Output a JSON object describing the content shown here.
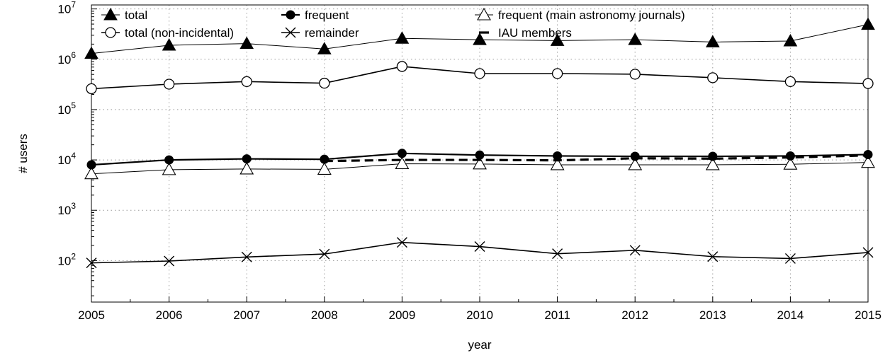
{
  "chart_data": {
    "type": "line",
    "xlabel": "year",
    "ylabel": "# users",
    "yscale": "log",
    "xlim": [
      2005,
      2015
    ],
    "ylim": [
      15,
      12000000
    ],
    "grid": true,
    "legend_position": "top",
    "x": [
      2005,
      2006,
      2007,
      2008,
      2009,
      2010,
      2011,
      2012,
      2013,
      2014,
      2015
    ],
    "xticks": [
      "2005",
      "2006",
      "2007",
      "2008",
      "2009",
      "2010",
      "2011",
      "2012",
      "2013",
      "2014",
      "2015"
    ],
    "yticks": [
      {
        "base": "10",
        "exp": "2",
        "value": 100
      },
      {
        "base": "10",
        "exp": "3",
        "value": 1000
      },
      {
        "base": "10",
        "exp": "4",
        "value": 10000
      },
      {
        "base": "10",
        "exp": "5",
        "value": 100000
      },
      {
        "base": "10",
        "exp": "6",
        "value": 1000000
      },
      {
        "base": "10",
        "exp": "7",
        "value": 10000000
      }
    ],
    "series": [
      {
        "key": "total",
        "name": "total",
        "marker": "triangle-filled",
        "line": "thin",
        "values": [
          1300000,
          1900000,
          2050000,
          1600000,
          2600000,
          2450000,
          2350000,
          2450000,
          2200000,
          2300000,
          4900000
        ]
      },
      {
        "key": "total_nonincidental",
        "name": "total (non-incidental)",
        "marker": "circle-open",
        "line": "medium",
        "values": [
          260000,
          320000,
          360000,
          335000,
          720000,
          520000,
          520000,
          505000,
          430000,
          360000,
          330000
        ]
      },
      {
        "key": "frequent",
        "name": "frequent",
        "marker": "circle-filled",
        "line": "thick",
        "values": [
          8000,
          10000,
          10500,
          10300,
          13500,
          12500,
          12000,
          11800,
          11800,
          12000,
          12800
        ]
      },
      {
        "key": "remainder",
        "name": "remainder",
        "marker": "cross",
        "line": "medium",
        "values": [
          90,
          98,
          118,
          135,
          230,
          190,
          137,
          160,
          120,
          110,
          145
        ]
      },
      {
        "key": "frequent_main",
        "name": "frequent (main astronomy journals)",
        "marker": "triangle-open",
        "line": "thin",
        "values": [
          5300,
          6400,
          6600,
          6500,
          8400,
          8300,
          8000,
          8000,
          8000,
          8200,
          8900
        ]
      },
      {
        "key": "iau",
        "name": "IAU members",
        "marker": "none",
        "line": "dashed",
        "x": [
          2008,
          2009,
          2010,
          2011,
          2012,
          2013,
          2014,
          2015
        ],
        "values": [
          9500,
          10000,
          10000,
          9800,
          10800,
          10600,
          11200,
          12300
        ]
      }
    ]
  }
}
